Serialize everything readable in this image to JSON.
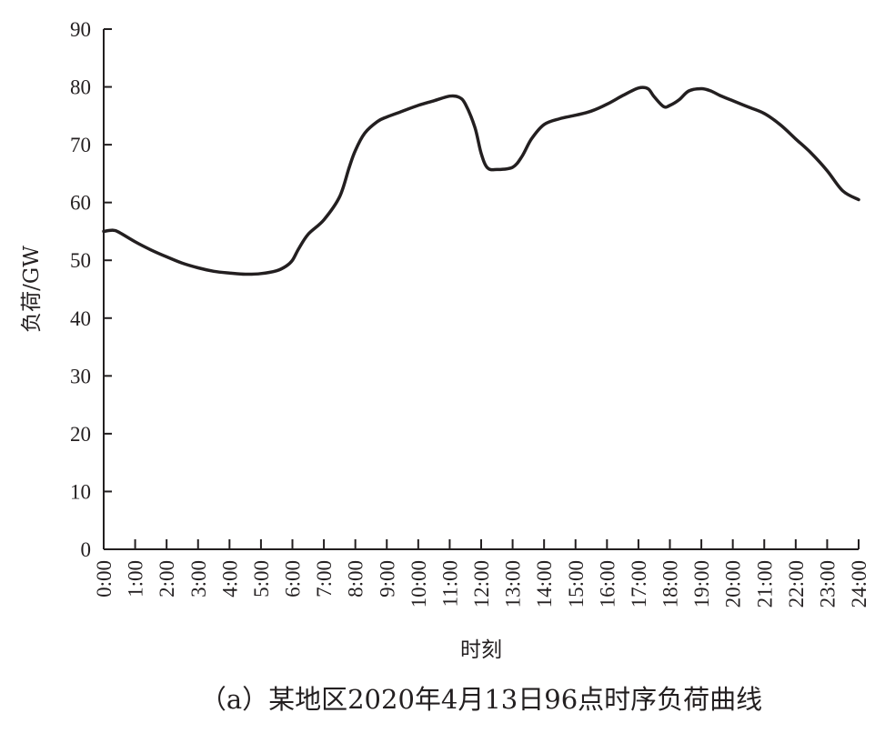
{
  "chart_data": {
    "type": "line",
    "title": "",
    "caption": "（a）某地区2020年4月13日96点时序负荷曲线",
    "xlabel": "时刻",
    "ylabel": "负荷/GW",
    "ylim": [
      0,
      90
    ],
    "y_ticks": [
      0,
      10,
      20,
      30,
      40,
      50,
      60,
      70,
      80,
      90
    ],
    "x_range": [
      0,
      24
    ],
    "x_ticks": [
      "0:00",
      "1:00",
      "2:00",
      "3:00",
      "4:00",
      "5:00",
      "6:00",
      "7:00",
      "8:00",
      "9:00",
      "10:00",
      "11:00",
      "12:00",
      "13:00",
      "14:00",
      "15:00",
      "16:00",
      "17:00",
      "18:00",
      "19:00",
      "20:00",
      "21:00",
      "22:00",
      "23:00",
      "24:00"
    ],
    "grid": false,
    "legend": "none",
    "line_color": "#231f20",
    "series": [
      {
        "x": [
          0,
          0.3,
          0.5,
          1,
          1.5,
          2,
          2.5,
          3,
          3.5,
          4,
          4.5,
          5,
          5.5,
          5.8,
          6,
          6.2,
          6.5,
          7,
          7.5,
          7.8,
          8,
          8.3,
          8.7,
          9,
          9.5,
          10,
          10.5,
          11,
          11.3,
          11.5,
          11.8,
          12,
          12.2,
          12.5,
          13,
          13.3,
          13.6,
          14,
          14.5,
          15,
          15.5,
          16,
          16.5,
          17,
          17.3,
          17.5,
          17.8,
          18,
          18.3,
          18.6,
          19,
          19.3,
          19.6,
          20,
          20.5,
          21,
          21.5,
          22,
          22.5,
          23,
          23.5,
          24
        ],
        "values": [
          55,
          55.2,
          54.8,
          53.2,
          51.8,
          50.6,
          49.5,
          48.7,
          48.1,
          47.8,
          47.6,
          47.7,
          48.2,
          49,
          50,
          52,
          54.5,
          57,
          61,
          66,
          69,
          72,
          74,
          74.8,
          75.8,
          76.8,
          77.6,
          78.4,
          78.2,
          77,
          73,
          68.5,
          66,
          65.7,
          66.1,
          68,
          71,
          73.5,
          74.5,
          75.1,
          75.8,
          77,
          78.5,
          79.8,
          79.7,
          78.3,
          76.6,
          76.8,
          77.8,
          79.3,
          79.7,
          79.3,
          78.5,
          77.6,
          76.5,
          75.4,
          73.5,
          71,
          68.5,
          65.5,
          62,
          60.5
        ]
      }
    ]
  }
}
